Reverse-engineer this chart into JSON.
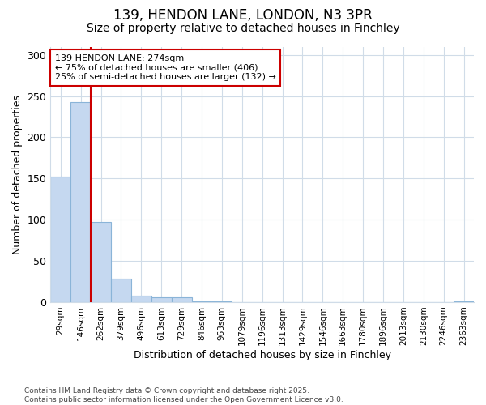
{
  "title1": "139, HENDON LANE, LONDON, N3 3PR",
  "title2": "Size of property relative to detached houses in Finchley",
  "xlabel": "Distribution of detached houses by size in Finchley",
  "ylabel": "Number of detached properties",
  "bar_color": "#c5d8f0",
  "bar_edge_color": "#8ab4d8",
  "categories": [
    "29sqm",
    "146sqm",
    "262sqm",
    "379sqm",
    "496sqm",
    "613sqm",
    "729sqm",
    "846sqm",
    "963sqm",
    "1079sqm",
    "1196sqm",
    "1313sqm",
    "1429sqm",
    "1546sqm",
    "1663sqm",
    "1780sqm",
    "1896sqm",
    "2013sqm",
    "2130sqm",
    "2246sqm",
    "2363sqm"
  ],
  "values": [
    152,
    243,
    97,
    28,
    8,
    6,
    6,
    1,
    1,
    0,
    0,
    0,
    0,
    0,
    0,
    0,
    0,
    0,
    0,
    0,
    1
  ],
  "ylim": [
    0,
    310
  ],
  "yticks": [
    0,
    50,
    100,
    150,
    200,
    250,
    300
  ],
  "vline_x": 2.0,
  "vline_color": "#cc0000",
  "annotation_text": "139 HENDON LANE: 274sqm\n← 75% of detached houses are smaller (406)\n25% of semi-detached houses are larger (132) →",
  "annotation_box_color": "#cc0000",
  "footnote": "Contains HM Land Registry data © Crown copyright and database right 2025.\nContains public sector information licensed under the Open Government Licence v3.0.",
  "bg_color": "#ffffff",
  "plot_bg_color": "#ffffff",
  "grid_color": "#d0dce8",
  "title1_fontsize": 12,
  "title2_fontsize": 10
}
